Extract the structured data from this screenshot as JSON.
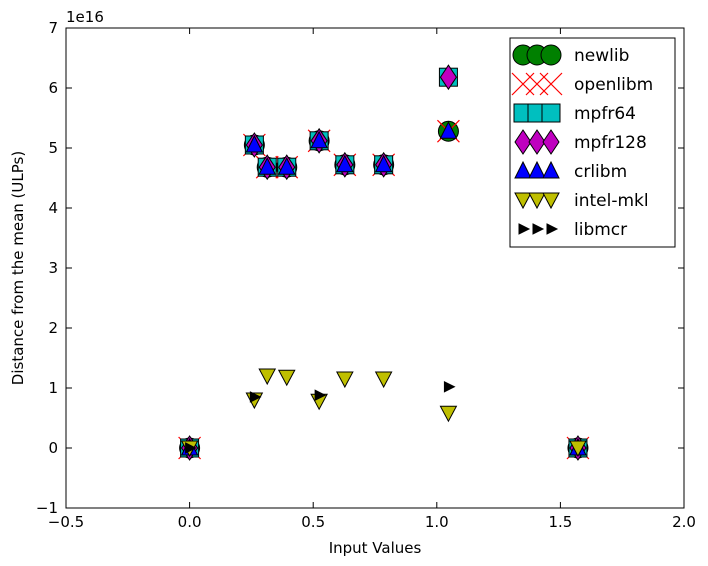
{
  "chart_data": {
    "type": "scatter",
    "title": "",
    "xlabel": "Input Values",
    "ylabel": "Distance from the mean (ULPs)",
    "y_scale_label": "1e16",
    "xlim": [
      -0.5,
      2.0
    ],
    "ylim": [
      -1,
      7
    ],
    "x_ticks": [
      -0.5,
      0.0,
      0.5,
      1.0,
      1.5,
      2.0
    ],
    "x_tick_labels": [
      "−0.5",
      "0.0",
      "0.5",
      "1.0",
      "1.5",
      "2.0"
    ],
    "y_ticks": [
      -1,
      0,
      1,
      2,
      3,
      4,
      5,
      6,
      7
    ],
    "y_tick_labels": [
      "−1",
      "0",
      "1",
      "2",
      "3",
      "4",
      "5",
      "6",
      "7"
    ],
    "grid": false,
    "legend_position": "top-right",
    "y_unit_multiplier": 1e+16,
    "series": [
      {
        "name": "newlib",
        "marker": "circle",
        "color": "#008000",
        "x": [
          0.0,
          0.262,
          0.314,
          0.393,
          0.524,
          0.628,
          0.785,
          1.047,
          1.571
        ],
        "y": [
          0,
          5.05,
          4.68,
          4.68,
          5.12,
          4.72,
          4.72,
          5.28,
          0
        ]
      },
      {
        "name": "openlibm",
        "marker": "x",
        "color": "#ff0000",
        "x": [
          0.0,
          0.262,
          0.314,
          0.393,
          0.524,
          0.628,
          0.785,
          1.047,
          1.571
        ],
        "y": [
          0,
          5.05,
          4.68,
          4.68,
          5.12,
          4.72,
          4.72,
          5.28,
          0
        ]
      },
      {
        "name": "mpfr64",
        "marker": "square",
        "color": "#00bfbf",
        "x": [
          0.0,
          0.262,
          0.314,
          0.393,
          0.524,
          0.628,
          0.785,
          1.047,
          1.571
        ],
        "y": [
          0,
          5.05,
          4.68,
          4.68,
          5.12,
          4.72,
          4.72,
          6.18,
          0
        ]
      },
      {
        "name": "mpfr128",
        "marker": "diamond",
        "color": "#bf00bf",
        "x": [
          0.0,
          0.262,
          0.314,
          0.393,
          0.524,
          0.628,
          0.785,
          1.047,
          1.571
        ],
        "y": [
          0,
          5.05,
          4.68,
          4.68,
          5.12,
          4.72,
          4.72,
          6.18,
          0
        ]
      },
      {
        "name": "crlibm",
        "marker": "triangle-up",
        "color": "#0000ff",
        "x": [
          0.0,
          0.262,
          0.314,
          0.393,
          0.524,
          0.628,
          0.785,
          1.047,
          1.571
        ],
        "y": [
          0,
          5.05,
          4.68,
          4.68,
          5.12,
          4.72,
          4.72,
          5.28,
          0
        ]
      },
      {
        "name": "intel-mkl",
        "marker": "triangle-down",
        "color": "#bfbf00",
        "x": [
          0.0,
          0.262,
          0.314,
          0.393,
          0.524,
          0.628,
          0.785,
          1.047,
          1.571
        ],
        "y": [
          0,
          0.8,
          1.2,
          1.18,
          0.78,
          1.15,
          1.15,
          0.58,
          0
        ]
      },
      {
        "name": "libmcr",
        "marker": "triangle-right",
        "color": "#000000",
        "x": [
          0.0,
          0.262,
          0.524,
          1.047
        ],
        "y": [
          0,
          0.85,
          0.88,
          1.02
        ]
      }
    ]
  }
}
